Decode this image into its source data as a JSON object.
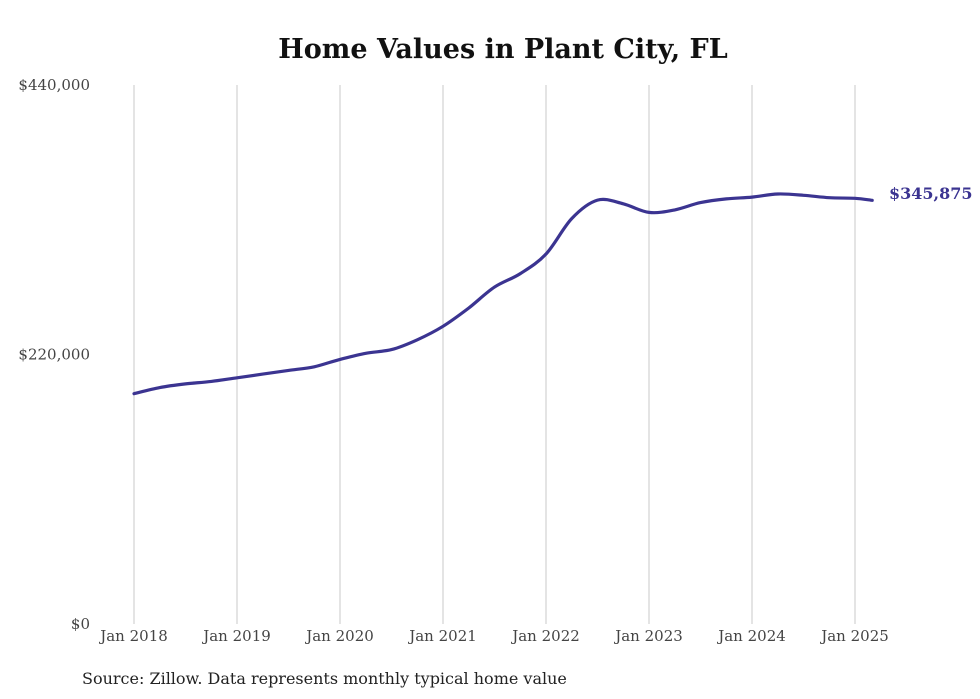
{
  "chart_data": {
    "type": "line",
    "title": "Home Values in Plant City, FL",
    "xlabel": "",
    "ylabel": "",
    "x_tick_labels": [
      "Jan 2018",
      "Jan 2019",
      "Jan 2020",
      "Jan 2021",
      "Jan 2022",
      "Jan 2023",
      "Jan 2024",
      "Jan 2025"
    ],
    "y_tick_labels": [
      "$0",
      "$220,000",
      "$440,000"
    ],
    "y_ticks": [
      0,
      220000,
      440000
    ],
    "ylim": [
      0,
      440000
    ],
    "xlim": [
      "2018-01",
      "2025-03"
    ],
    "grid": "vertical",
    "line_color": "#3b3491",
    "series": [
      {
        "x": [
          "2018-01",
          "2018-04",
          "2018-07",
          "2018-10",
          "2019-01",
          "2019-04",
          "2019-07",
          "2019-10",
          "2020-01",
          "2020-04",
          "2020-07",
          "2020-10",
          "2021-01",
          "2021-04",
          "2021-07",
          "2021-10",
          "2022-01",
          "2022-04",
          "2022-07",
          "2022-10",
          "2023-01",
          "2023-04",
          "2023-07",
          "2023-10",
          "2024-01",
          "2024-04",
          "2024-07",
          "2024-10",
          "2025-01",
          "2025-03"
        ],
        "values": [
          188000,
          193000,
          196000,
          198000,
          201000,
          204000,
          207000,
          210000,
          216000,
          221000,
          224000,
          232000,
          243000,
          258000,
          275000,
          286000,
          302000,
          331000,
          346000,
          343000,
          336000,
          338000,
          344000,
          347000,
          348500,
          351000,
          350000,
          348000,
          347500,
          345875
        ]
      }
    ],
    "annotations": [
      {
        "label": "$345,875",
        "value": 345875,
        "x": "2025-03"
      }
    ]
  },
  "footer": {
    "source": "Source: Zillow. Data represents monthly typical home value"
  }
}
